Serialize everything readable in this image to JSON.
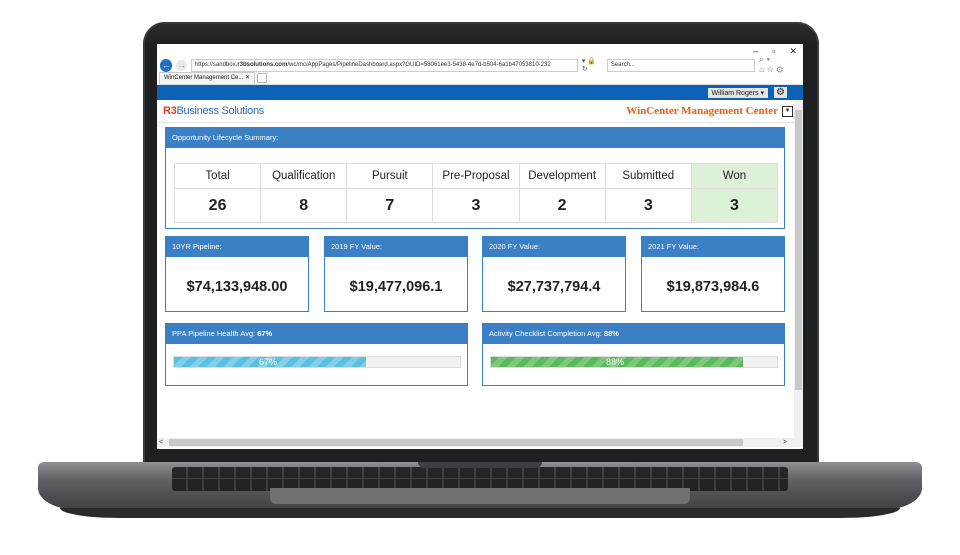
{
  "window": {
    "minimize": "–",
    "maximize": "▫",
    "close": "✕"
  },
  "browser": {
    "url_prefix": "https://sandbox.",
    "url_domain": "r3bsolutions.com",
    "url_path": "/wc/mc/AppPages/PipelineDashboard.aspx?GUID=58061ee3-5438-4e7d-b504-6a1b47053810-232",
    "search_placeholder": "Search...",
    "tab_title": "WinCenter Management Ce..."
  },
  "app": {
    "user": "William Rogers",
    "brand_prefix": "R3",
    "brand_suffix": "Business Solutions",
    "app_title": "WinCenter Management Center"
  },
  "summary": {
    "title": "Opportunity Lifecycle Summary:",
    "stages": [
      {
        "label": "Total",
        "value": "26"
      },
      {
        "label": "Qualification",
        "value": "8"
      },
      {
        "label": "Pursuit",
        "value": "7"
      },
      {
        "label": "Pre-Proposal",
        "value": "3"
      },
      {
        "label": "Development",
        "value": "2"
      },
      {
        "label": "Submitted",
        "value": "3"
      },
      {
        "label": "Won",
        "value": "3"
      }
    ]
  },
  "values": [
    {
      "label": "10YR Pipeline:",
      "value": "$74,133,948.00"
    },
    {
      "label": "2019 FY Value:",
      "value": "$19,477,096.1"
    },
    {
      "label": "2020 FY Value:",
      "value": "$27,737,794.4"
    },
    {
      "label": "2021 FY Value:",
      "value": "$19,873,984.6"
    }
  ],
  "health": [
    {
      "label": "PPA Pipeline Health Avg: ",
      "value": "67%",
      "fraction": 0.67
    },
    {
      "label": "Activity Checklist Completion Avg: ",
      "value": "88%",
      "fraction": 0.88
    }
  ],
  "colors": {
    "accent": "#3b7fc4",
    "appbar": "#0c62b7",
    "brand_r3": "#d9401d",
    "title_orange": "#e2620f",
    "won_bg": "#ddf0d8"
  }
}
